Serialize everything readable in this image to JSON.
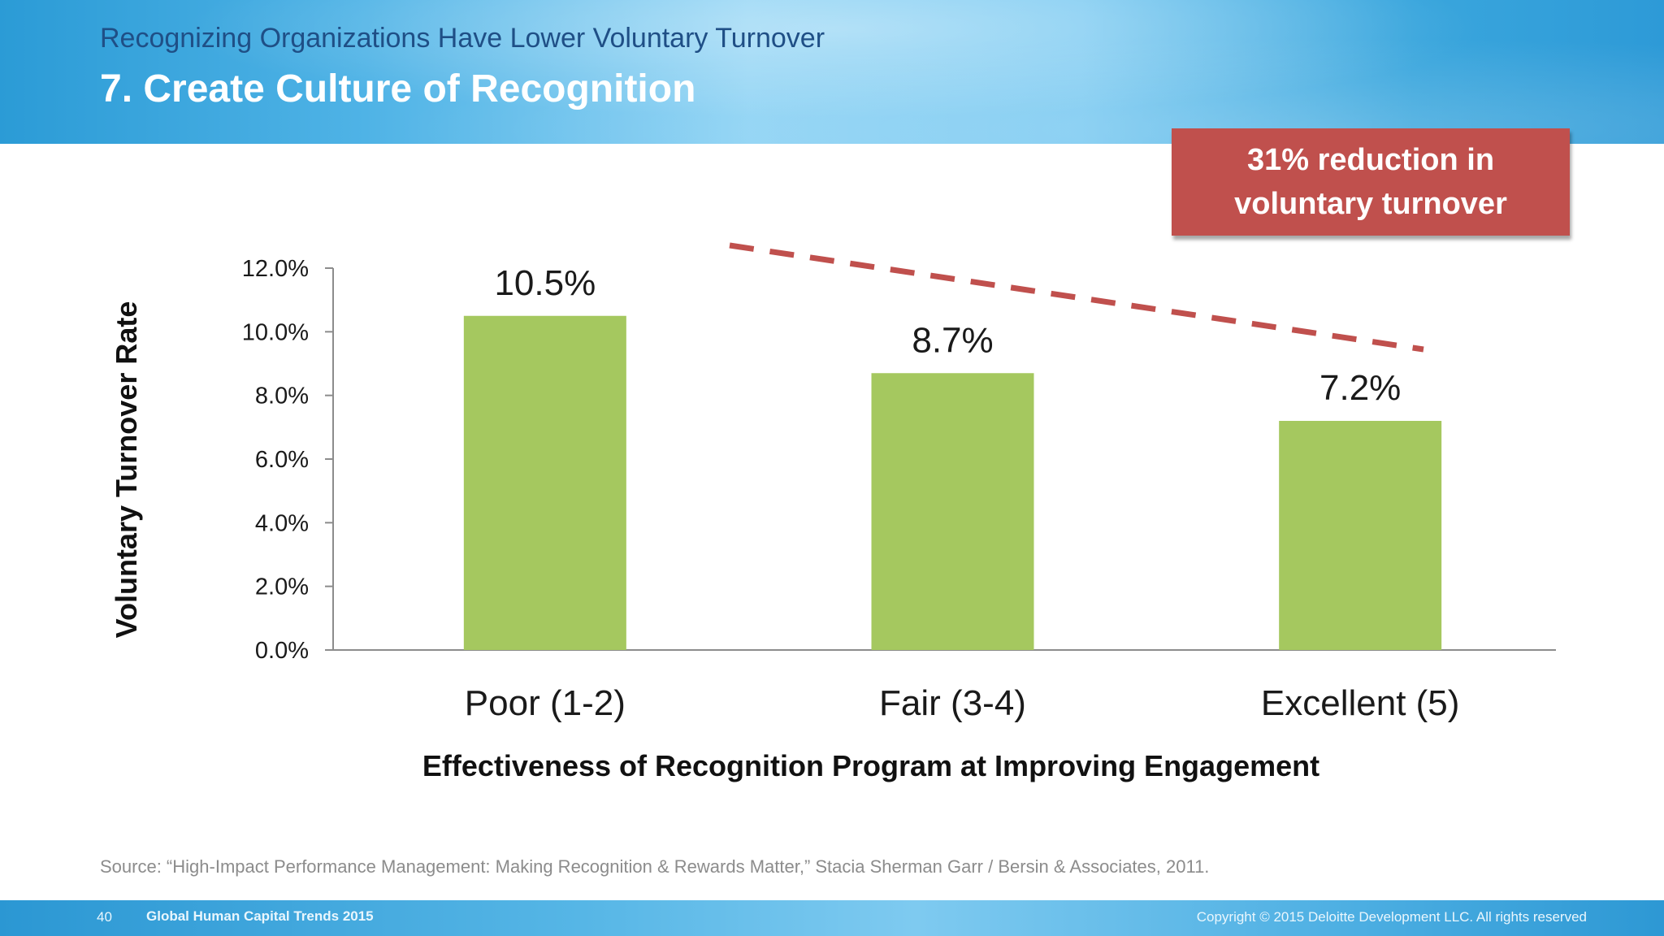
{
  "slide": {
    "subtitle": "Recognizing Organizations Have Lower Voluntary Turnover",
    "title": "7.  Create Culture of Recognition",
    "callout": "31% reduction in voluntary turnover",
    "source": "Source:  “High-Impact Performance Management:  Making Recognition & Rewards Matter,” Stacia Sherman Garr / Bersin & Associates, 2011.",
    "footer": {
      "page_number": "40",
      "presentation_name": "Global Human Capital Trends 2015",
      "copyright": "Copyright © 2015 Deloitte Development LLC. All rights reserved"
    }
  },
  "colors": {
    "bar": "#a5c85f",
    "trend_line": "#c0504d",
    "callout_bg": "#c0504d",
    "axis": "#8c8c8c"
  },
  "chart_data": {
    "type": "bar",
    "categories": [
      "Poor (1-2)",
      "Fair (3-4)",
      "Excellent (5)"
    ],
    "values": [
      10.5,
      8.7,
      7.2
    ],
    "data_labels": [
      "10.5%",
      "8.7%",
      "7.2%"
    ],
    "xlabel": "Effectiveness of Recognition Program at Improving Engagement",
    "ylabel": "Voluntary Turnover Rate",
    "ylim": [
      0,
      12
    ],
    "y_ticks": [
      0,
      2,
      4,
      6,
      8,
      10,
      12
    ],
    "y_tick_labels": [
      "0.0%",
      "2.0%",
      "4.0%",
      "6.0%",
      "8.0%",
      "10.0%",
      "12.0%"
    ],
    "grid": false,
    "legend": "none",
    "annotation": {
      "type": "dashed-trend-line",
      "from_category": "Poor (1-2)",
      "to_category": "Excellent (5)",
      "direction": "down"
    }
  }
}
